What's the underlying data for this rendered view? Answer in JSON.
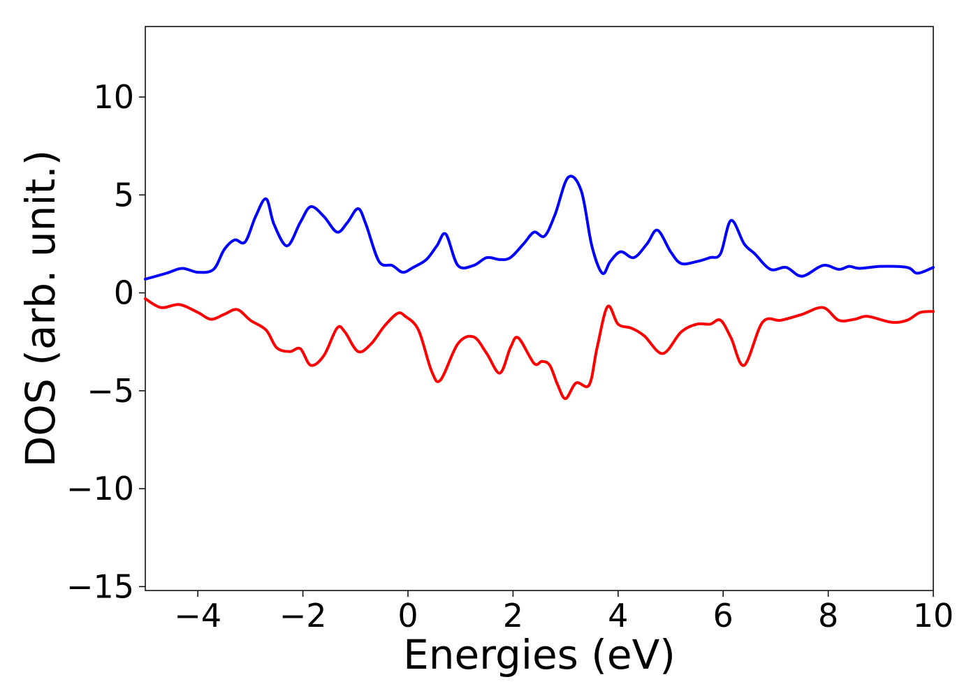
{
  "chart_data": {
    "type": "line",
    "xlabel": "Energies (eV)",
    "ylabel": "DOS (arb. unit.)",
    "xlim": [
      -5,
      10
    ],
    "ylim": [
      -15.2,
      13.6
    ],
    "xticks": [
      -4,
      -2,
      0,
      2,
      4,
      6,
      8,
      10
    ],
    "yticks": [
      -15,
      -10,
      -5,
      0,
      5,
      10
    ],
    "grid": false,
    "legend": "none",
    "series": [
      {
        "color": "#0000ff",
        "x": [
          -5.0,
          -4.6,
          -4.3,
          -4.0,
          -3.7,
          -3.5,
          -3.3,
          -3.1,
          -2.9,
          -2.7,
          -2.55,
          -2.3,
          -2.05,
          -1.85,
          -1.6,
          -1.35,
          -1.15,
          -0.95,
          -0.8,
          -0.55,
          -0.3,
          -0.1,
          0.1,
          0.35,
          0.55,
          0.72,
          0.95,
          1.25,
          1.5,
          1.75,
          1.95,
          2.2,
          2.4,
          2.6,
          2.8,
          3.05,
          3.3,
          3.5,
          3.7,
          3.85,
          4.05,
          4.3,
          4.55,
          4.75,
          5.0,
          5.2,
          5.5,
          5.75,
          5.95,
          6.15,
          6.4,
          6.6,
          6.9,
          7.2,
          7.5,
          7.9,
          8.2,
          8.4,
          8.6,
          9.0,
          9.5,
          9.7,
          10.0
        ],
        "y": [
          0.7,
          1.0,
          1.25,
          1.05,
          1.2,
          2.2,
          2.7,
          2.6,
          3.9,
          4.8,
          3.5,
          2.4,
          3.6,
          4.4,
          3.9,
          3.1,
          3.6,
          4.3,
          3.5,
          1.6,
          1.4,
          1.05,
          1.3,
          1.7,
          2.4,
          3.0,
          1.4,
          1.4,
          1.8,
          1.7,
          1.8,
          2.5,
          3.1,
          2.9,
          4.0,
          5.9,
          5.2,
          2.4,
          1.0,
          1.6,
          2.1,
          1.8,
          2.5,
          3.2,
          2.1,
          1.5,
          1.6,
          1.8,
          2.0,
          3.7,
          2.5,
          2.0,
          1.2,
          1.3,
          0.85,
          1.4,
          1.2,
          1.35,
          1.25,
          1.35,
          1.3,
          1.0,
          1.3
        ]
      },
      {
        "color": "#ff0000",
        "x": [
          -5.0,
          -4.7,
          -4.35,
          -4.0,
          -3.75,
          -3.5,
          -3.25,
          -3.0,
          -2.7,
          -2.5,
          -2.25,
          -2.05,
          -1.85,
          -1.6,
          -1.35,
          -1.2,
          -0.95,
          -0.7,
          -0.45,
          -0.2,
          -0.05,
          0.2,
          0.45,
          0.62,
          0.95,
          1.25,
          1.5,
          1.75,
          1.95,
          2.1,
          2.4,
          2.55,
          2.7,
          2.85,
          3.0,
          3.2,
          3.45,
          3.6,
          3.8,
          4.0,
          4.25,
          4.5,
          4.85,
          5.2,
          5.5,
          5.75,
          5.95,
          6.15,
          6.4,
          6.75,
          7.1,
          7.5,
          7.9,
          8.2,
          8.5,
          8.75,
          9.2,
          9.5,
          9.75,
          10.0
        ],
        "y": [
          -0.3,
          -0.75,
          -0.6,
          -1.0,
          -1.35,
          -1.1,
          -0.85,
          -1.4,
          -1.9,
          -2.8,
          -3.0,
          -2.85,
          -3.7,
          -3.2,
          -1.8,
          -2.0,
          -3.0,
          -2.6,
          -1.7,
          -1.05,
          -1.2,
          -1.9,
          -4.0,
          -4.45,
          -2.6,
          -2.25,
          -3.1,
          -4.1,
          -2.8,
          -2.3,
          -3.6,
          -3.5,
          -3.7,
          -4.7,
          -5.4,
          -4.6,
          -4.7,
          -2.8,
          -0.7,
          -1.6,
          -1.8,
          -2.2,
          -3.1,
          -2.0,
          -1.6,
          -1.6,
          -1.4,
          -2.3,
          -3.7,
          -1.5,
          -1.4,
          -1.1,
          -0.75,
          -1.4,
          -1.35,
          -1.2,
          -1.5,
          -1.4,
          -1.0,
          -0.95
        ]
      }
    ]
  }
}
